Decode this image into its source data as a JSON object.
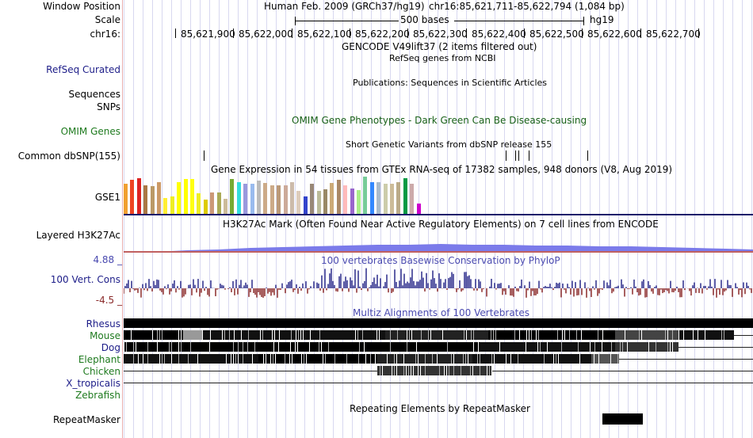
{
  "header": {
    "window_position_label": "Window Position",
    "assembly_text": "Human Feb. 2009 (GRCh37/hg19)",
    "position_text": "chr16:85,621,711-85,622,794 (1,084 bp)",
    "scale_label": "Scale",
    "scale_bar_text": "500 bases",
    "scale_db": "hg19",
    "chrom_label": "chr16:",
    "ruler_ticks": [
      "85,621,900",
      "85,622,000",
      "85,622,100",
      "85,622,200",
      "85,622,300",
      "85,622,400",
      "85,622,500",
      "85,622,600",
      "85,622,700"
    ]
  },
  "tracks": {
    "gencode": "GENCODE V49lift37 (2 items filtered out)",
    "refseq_label": "RefSeq Curated",
    "refseq_title": "RefSeq genes from NCBI",
    "publications_title": "Publications: Sequences in Scientific Articles",
    "sequences_label": "Sequences",
    "snps_label": "SNPs",
    "omim_label": "OMIM Genes",
    "omim_title": "OMIM Gene Phenotypes - Dark Green Can Be Disease-causing",
    "dbsnp_title": "Short Genetic Variants from dbSNP release 155",
    "dbsnp_label": "Common dbSNP(155)",
    "gtex_title": "Gene Expression in 54 tissues from GTEx RNA-seq of 17382 samples, 948 donors (V8, Aug 2019)",
    "gse_label": "GSE1",
    "h3k27_label": "Layered H3K27Ac",
    "h3k27_title": "H3K27Ac Mark (Often Found Near Active Regulatory Elements) on 7 cell lines from ENCODE",
    "cons_max": "4.88 _",
    "cons_label": "100 Vert. Cons",
    "cons_min": "-4.5 _",
    "cons_title": "100 vertebrates Basewise Conservation by PhyloP",
    "multiz_title": "Multiz Alignments of 100 Vertebrates",
    "species": [
      "Rhesus",
      "Mouse",
      "Dog",
      "Elephant",
      "Chicken",
      "X_tropicalis",
      "Zebrafish"
    ],
    "repeat_title": "Repeating Elements by RepeatMasker",
    "repeat_label": "RepeatMasker"
  },
  "gtex_colors": [
    "#f0a030",
    "#ee4422",
    "#dd2222",
    "#aa7744",
    "#bb9966",
    "#cc9966",
    "#ffee33",
    "#eeee22",
    "#ffff00",
    "#ffff00",
    "#ffff11",
    "#eeee22",
    "#ddcc00",
    "#cc9977",
    "#aaaa55",
    "#ccbb99",
    "#77aa33",
    "#33dddd",
    "#9999dd",
    "#99bbee",
    "#bbbbbb",
    "#ccaa88",
    "#ccaa88",
    "#bb9977",
    "#ccaa99",
    "#ccbbaa",
    "#ddccbb",
    "#3344cc",
    "#998877",
    "#bbbb99",
    "#998866",
    "#ccaa77",
    "#aa8866",
    "#ffbbbb",
    "#9966cc",
    "#aaee88",
    "#77cc99",
    "#3388ff",
    "#aabbcc",
    "#ccccaa",
    "#ccbb99",
    "#bbaa88",
    "#009944",
    "#ccaaaa",
    "#cc00cc"
  ],
  "gtex_values": [
    38,
    43,
    45,
    36,
    35,
    40,
    20,
    22,
    40,
    44,
    44,
    26,
    18,
    27,
    27,
    19,
    44,
    40,
    38,
    38,
    42,
    39,
    36,
    36,
    36,
    40,
    29,
    22,
    38,
    29,
    31,
    39,
    43,
    36,
    32,
    30,
    47,
    40,
    40,
    38,
    38,
    40,
    45,
    38,
    13
  ]
}
